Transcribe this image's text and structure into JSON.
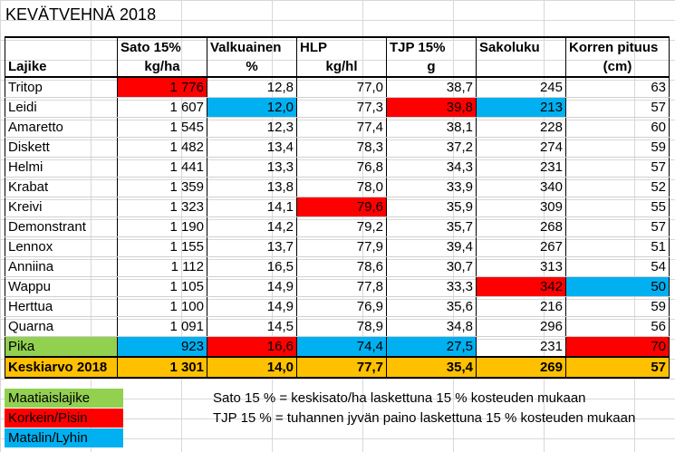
{
  "title": "KEVÄTVEHNÄ 2018",
  "headers_top": [
    "",
    "Sato 15%",
    "Valkuainen",
    "HLP",
    "TJP 15%",
    "Sakoluku",
    "Korren pituus"
  ],
  "headers_sub": [
    "Lajike",
    "kg/ha",
    "%",
    "kg/hl",
    "g",
    "",
    "(cm)"
  ],
  "rows": [
    {
      "name": "Tritop",
      "v": [
        "1 776",
        "12,8",
        "77,0",
        "38,7",
        "245",
        "63"
      ],
      "hl": [
        "red",
        "",
        "",
        "",
        "",
        ""
      ]
    },
    {
      "name": "Leidi",
      "v": [
        "1 607",
        "12,0",
        "77,3",
        "39,8",
        "213",
        "57"
      ],
      "hl": [
        "",
        "blue",
        "",
        "red",
        "blue",
        ""
      ]
    },
    {
      "name": "Amaretto",
      "v": [
        "1 545",
        "12,3",
        "77,4",
        "38,1",
        "228",
        "60"
      ],
      "hl": [
        "",
        "",
        "",
        "",
        "",
        ""
      ]
    },
    {
      "name": "Diskett",
      "v": [
        "1 482",
        "13,4",
        "78,3",
        "37,2",
        "274",
        "59"
      ],
      "hl": [
        "",
        "",
        "",
        "",
        "",
        ""
      ]
    },
    {
      "name": "Helmi",
      "v": [
        "1 441",
        "13,3",
        "76,8",
        "34,3",
        "231",
        "57"
      ],
      "hl": [
        "",
        "",
        "",
        "",
        "",
        ""
      ]
    },
    {
      "name": "Krabat",
      "v": [
        "1 359",
        "13,8",
        "78,0",
        "33,9",
        "340",
        "52"
      ],
      "hl": [
        "",
        "",
        "",
        "",
        "",
        ""
      ]
    },
    {
      "name": "Kreivi",
      "v": [
        "1 323",
        "14,1",
        "79,6",
        "35,9",
        "309",
        "55"
      ],
      "hl": [
        "",
        "",
        "red",
        "",
        "",
        ""
      ]
    },
    {
      "name": "Demonstrant",
      "v": [
        "1 190",
        "14,2",
        "79,2",
        "35,7",
        "268",
        "57"
      ],
      "hl": [
        "",
        "",
        "",
        "",
        "",
        ""
      ]
    },
    {
      "name": "Lennox",
      "v": [
        "1 155",
        "13,7",
        "77,9",
        "39,4",
        "267",
        "51"
      ],
      "hl": [
        "",
        "",
        "",
        "",
        "",
        ""
      ]
    },
    {
      "name": "Anniina",
      "v": [
        "1 112",
        "16,5",
        "78,6",
        "30,7",
        "313",
        "54"
      ],
      "hl": [
        "",
        "",
        "",
        "",
        "",
        ""
      ]
    },
    {
      "name": "Wappu",
      "v": [
        "1 105",
        "14,9",
        "77,8",
        "33,3",
        "342",
        "50"
      ],
      "hl": [
        "",
        "",
        "",
        "",
        "red",
        "blue"
      ]
    },
    {
      "name": "Herttua",
      "v": [
        "1 100",
        "14,9",
        "76,9",
        "35,6",
        "216",
        "59"
      ],
      "hl": [
        "",
        "",
        "",
        "",
        "",
        ""
      ]
    },
    {
      "name": "Quarna",
      "v": [
        "1 091",
        "14,5",
        "78,9",
        "34,8",
        "296",
        "56"
      ],
      "hl": [
        "",
        "",
        "",
        "",
        "",
        ""
      ]
    },
    {
      "name": "Pika",
      "v": [
        "923",
        "16,6",
        "74,4",
        "27,5",
        "231",
        "70"
      ],
      "hl": [
        "blue",
        "red",
        "blue",
        "blue",
        "",
        "red"
      ],
      "name_hl": "green"
    }
  ],
  "average": {
    "name": "Keskiarvo 2018",
    "v": [
      "1 301",
      "14,0",
      "77,7",
      "35,4",
      "269",
      "57"
    ]
  },
  "legend": [
    "Maatiaislajike",
    "Korkein/Pisin",
    "Matalin/Lyhin"
  ],
  "notes": [
    "Sato 15 % = keskisato/ha laskettuna 15 % kosteuden mukaan",
    "TJP 15 % = tuhannen jyvän paino laskettuna 15 % kosteuden mukaan"
  ],
  "colors": {
    "red": "#ff0000",
    "blue": "#00b0f0",
    "green": "#92d050",
    "orange": "#ffc000"
  }
}
